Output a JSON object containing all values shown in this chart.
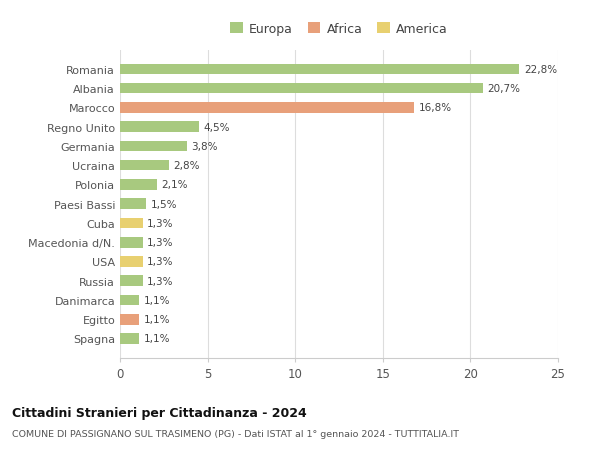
{
  "categories": [
    "Spagna",
    "Egitto",
    "Danimarca",
    "Russia",
    "USA",
    "Macedonia d/N.",
    "Cuba",
    "Paesi Bassi",
    "Polonia",
    "Ucraina",
    "Germania",
    "Regno Unito",
    "Marocco",
    "Albania",
    "Romania"
  ],
  "values": [
    1.1,
    1.1,
    1.1,
    1.3,
    1.3,
    1.3,
    1.3,
    1.5,
    2.1,
    2.8,
    3.8,
    4.5,
    16.8,
    20.7,
    22.8
  ],
  "colors": [
    "#a8c97f",
    "#e8a07a",
    "#a8c97f",
    "#a8c97f",
    "#e8d070",
    "#a8c97f",
    "#e8d070",
    "#a8c97f",
    "#a8c97f",
    "#a8c97f",
    "#a8c97f",
    "#a8c97f",
    "#e8a07a",
    "#a8c97f",
    "#a8c97f"
  ],
  "labels": [
    "1,1%",
    "1,1%",
    "1,1%",
    "1,3%",
    "1,3%",
    "1,3%",
    "1,3%",
    "1,5%",
    "2,1%",
    "2,8%",
    "3,8%",
    "4,5%",
    "16,8%",
    "20,7%",
    "22,8%"
  ],
  "legend": [
    {
      "label": "Europa",
      "color": "#a8c97f"
    },
    {
      "label": "Africa",
      "color": "#e8a07a"
    },
    {
      "label": "America",
      "color": "#e8d070"
    }
  ],
  "xlim": [
    0,
    25
  ],
  "xticks": [
    0,
    5,
    10,
    15,
    20,
    25
  ],
  "title": "Cittadini Stranieri per Cittadinanza - 2024",
  "subtitle": "COMUNE DI PASSIGNANO SUL TRASIMENO (PG) - Dati ISTAT al 1° gennaio 2024 - TUTTITALIA.IT",
  "bg_color": "#ffffff",
  "grid_color": "#dddddd",
  "bar_height": 0.55
}
